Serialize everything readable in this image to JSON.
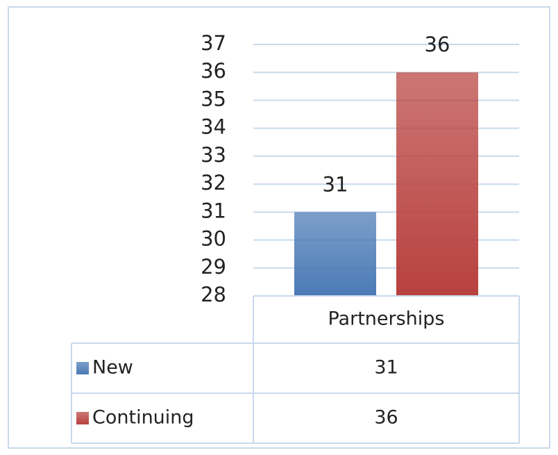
{
  "chart_data": {
    "type": "bar",
    "categories": [
      "Partnerships"
    ],
    "series": [
      {
        "name": "New",
        "color": "#4a7ab5",
        "values": [
          31
        ]
      },
      {
        "name": "Continuing",
        "color": "#b8413e",
        "values": [
          36
        ]
      }
    ],
    "ylim": [
      28,
      37
    ],
    "yticks": [
      28,
      29,
      30,
      31,
      32,
      33,
      34,
      35,
      36,
      37
    ],
    "grid": true,
    "data_table": true
  }
}
